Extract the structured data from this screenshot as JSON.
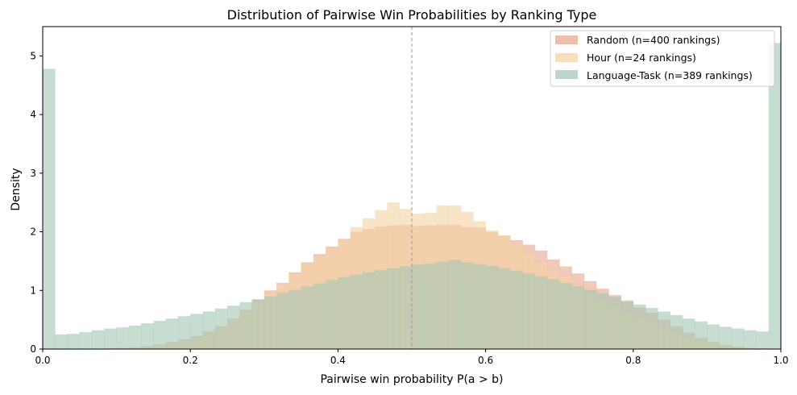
{
  "chart_data": {
    "type": "histogram",
    "title": "Distribution of Pairwise Win Probabilities by Ranking Type",
    "xlabel": "Pairwise win probability P(a > b)",
    "ylabel": "Density",
    "xlim": [
      0.0,
      1.0
    ],
    "ylim": [
      0.0,
      5.5
    ],
    "xticks": [
      "0.0",
      "0.2",
      "0.4",
      "0.6",
      "0.8",
      "1.0"
    ],
    "yticks": [
      "0",
      "1",
      "2",
      "3",
      "4",
      "5"
    ],
    "reference_line_x": 0.5,
    "bin_width": 0.0167,
    "legend_position": "top-right",
    "grid": false,
    "series": [
      {
        "name": "Random (n=400 rankings)",
        "color": "#e8a88e",
        "values": [
          0.0,
          0.0,
          0.0,
          0.0,
          0.0,
          0.01,
          0.02,
          0.03,
          0.05,
          0.08,
          0.12,
          0.17,
          0.22,
          0.3,
          0.39,
          0.52,
          0.67,
          0.84,
          1.0,
          1.13,
          1.31,
          1.48,
          1.62,
          1.75,
          1.88,
          2.0,
          2.05,
          2.09,
          2.11,
          2.12,
          2.1,
          2.11,
          2.12,
          2.12,
          2.08,
          2.07,
          2.0,
          1.93,
          1.86,
          1.78,
          1.68,
          1.53,
          1.41,
          1.29,
          1.16,
          1.03,
          0.92,
          0.81,
          0.71,
          0.62,
          0.5,
          0.39,
          0.28,
          0.19,
          0.12,
          0.07,
          0.04,
          0.02,
          0.01,
          0.0
        ]
      },
      {
        "name": "Hour (n=24 rankings)",
        "color": "#f4d3a5",
        "values": [
          0.0,
          0.0,
          0.0,
          0.0,
          0.0,
          0.0,
          0.01,
          0.02,
          0.04,
          0.06,
          0.09,
          0.13,
          0.18,
          0.26,
          0.36,
          0.5,
          0.63,
          0.8,
          0.95,
          1.1,
          1.28,
          1.45,
          1.58,
          1.72,
          1.87,
          2.08,
          2.23,
          2.37,
          2.5,
          2.39,
          2.31,
          2.32,
          2.45,
          2.45,
          2.34,
          2.18,
          2.02,
          1.94,
          1.78,
          1.61,
          1.46,
          1.31,
          1.23,
          1.07,
          0.96,
          0.85,
          0.73,
          0.63,
          0.54,
          0.45,
          0.36,
          0.28,
          0.21,
          0.15,
          0.1,
          0.06,
          0.03,
          0.01,
          0.0,
          0.0
        ]
      },
      {
        "name": "Language-Task (n=389 rankings)",
        "color": "#a6c8b5",
        "values": [
          4.78,
          0.25,
          0.26,
          0.29,
          0.32,
          0.35,
          0.37,
          0.4,
          0.44,
          0.48,
          0.52,
          0.56,
          0.6,
          0.64,
          0.69,
          0.74,
          0.8,
          0.85,
          0.9,
          0.96,
          1.01,
          1.07,
          1.12,
          1.18,
          1.23,
          1.27,
          1.31,
          1.35,
          1.38,
          1.41,
          1.44,
          1.46,
          1.49,
          1.52,
          1.48,
          1.45,
          1.42,
          1.38,
          1.34,
          1.29,
          1.24,
          1.19,
          1.13,
          1.07,
          1.01,
          0.95,
          0.89,
          0.83,
          0.76,
          0.7,
          0.64,
          0.58,
          0.52,
          0.47,
          0.42,
          0.38,
          0.35,
          0.32,
          0.3,
          5.22
        ]
      }
    ]
  }
}
